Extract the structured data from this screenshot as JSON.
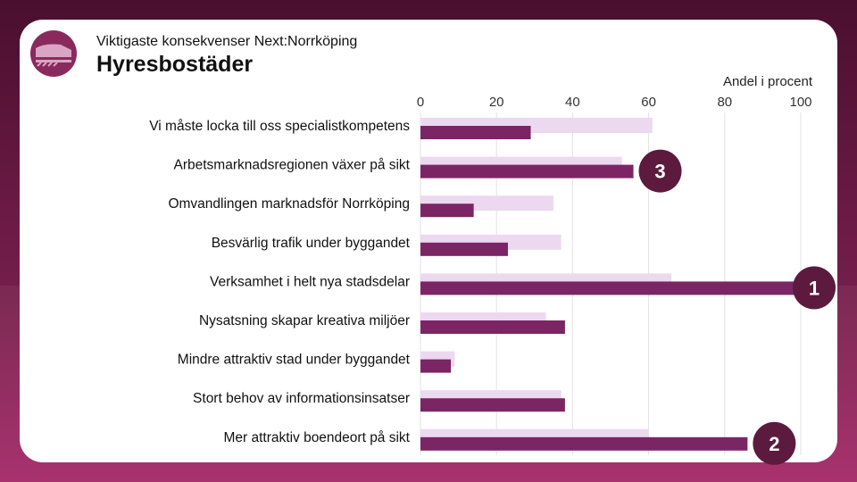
{
  "header": {
    "subtitle": "Viktigaste konsekvenser Next:Norrköping",
    "title": "Hyresbostäder"
  },
  "colors": {
    "primary_bar": "#7b2565",
    "secondary_bar": "#ecd9f0",
    "badge": "#5c1a3e"
  },
  "icons": {
    "logo": "train-icon"
  },
  "chart_data": {
    "type": "bar",
    "orientation": "horizontal",
    "xlabel": "Andel i procent",
    "xlim": [
      0,
      100
    ],
    "ticks": [
      0,
      20,
      40,
      60,
      80,
      100
    ],
    "grid": true,
    "categories": [
      "Vi måste locka till oss specialistkompetens",
      "Arbetsmarknadsregionen växer på sikt",
      "Omvandlingen marknadsför Norrköping",
      "Besvärlig trafik under byggandet",
      "Verksamhet i helt nya stadsdelar",
      "Nysatsning skapar kreativa miljöer",
      "Mindre attraktiv stad under byggandet",
      "Stort behov av informationsinsatser",
      "Mer attraktiv boendeort på sikt"
    ],
    "series": [
      {
        "values": [
          61,
          53,
          35,
          37,
          66,
          33,
          9,
          37,
          60
        ]
      },
      {
        "values": [
          29,
          56,
          14,
          23,
          100,
          38,
          8,
          38,
          86
        ]
      }
    ],
    "annotations": [
      {
        "label": "3",
        "category_index": 1
      },
      {
        "label": "1",
        "category_index": 4
      },
      {
        "label": "2",
        "category_index": 8
      }
    ]
  }
}
